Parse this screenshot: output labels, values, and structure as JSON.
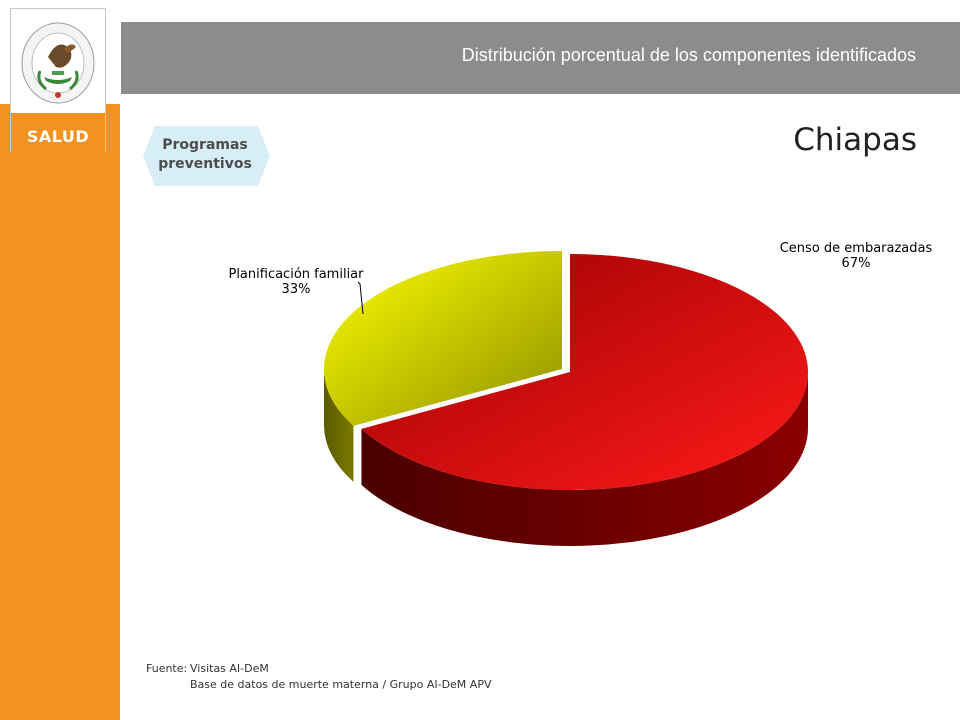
{
  "header": {
    "title": "Distribución porcentual de los componentes identificados"
  },
  "logo": {
    "text": "SALUD",
    "seal_text": "ESTADOS UNIDOS MEXICANOS"
  },
  "badge": {
    "line1": "Programas",
    "line2": "preventivos"
  },
  "state": "Chiapas",
  "chart_data": {
    "type": "pie",
    "title": "",
    "slices": [
      {
        "label": "Censo de embarazadas",
        "value": 67,
        "value_text": "67%",
        "color": "#e00000"
      },
      {
        "label": "Planificación familiar",
        "value": 33,
        "value_text": "33%",
        "color": "#d4d400"
      }
    ]
  },
  "footer": {
    "source_label": "Fuente:",
    "source_line1": "Visitas AI-DeM",
    "source_line2": "Base de datos de muerte materna / Grupo AI-DeM APV"
  },
  "colors": {
    "accent": "#f39221",
    "header": "#8c8c8c"
  }
}
